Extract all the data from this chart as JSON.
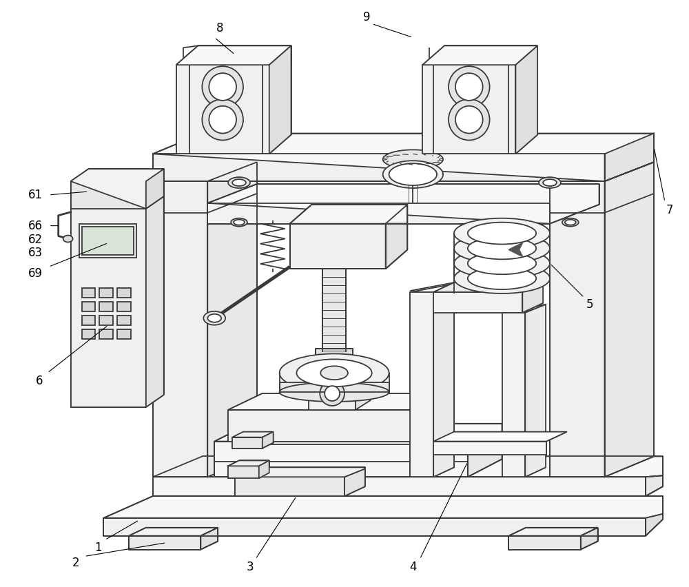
{
  "bg_color": "#ffffff",
  "lc": "#3a3a3a",
  "lw": 1.3,
  "fig_width": 10.0,
  "fig_height": 8.52,
  "label_fs": 12
}
